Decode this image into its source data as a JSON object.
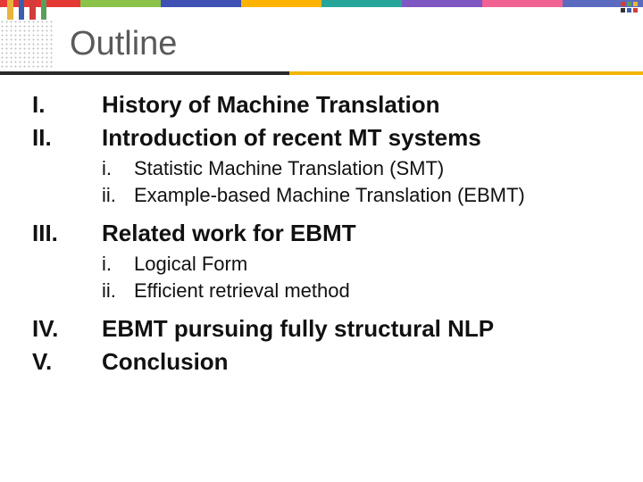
{
  "title": "Outline",
  "top_stripe_colors": [
    "#e53935",
    "#8bc34a",
    "#3f51b5",
    "#ffb300",
    "#26a69a",
    "#7e57c2",
    "#f06292",
    "#5c6bc0"
  ],
  "accent_bar_colors": [
    "#e8b43a",
    "#3a5fb0",
    "#d23c3c",
    "#58a05a"
  ],
  "title_underline_dark": "#2a2a2a",
  "title_underline_accent": "#f2b705",
  "logo_colors": {
    "a": "#d23c3c",
    "b": "#58a05a",
    "c": "#3a5fb0",
    "d": "#e8b43a",
    "e": "#333333"
  },
  "items": [
    {
      "num": "I.",
      "text": "History of Machine Translation"
    },
    {
      "num": "II.",
      "text": "Introduction of recent MT systems",
      "children": [
        {
          "num": "i.",
          "text": "Statistic Machine Translation (SMT)"
        },
        {
          "num": "ii.",
          "text": "Example-based Machine Translation (EBMT)"
        }
      ]
    },
    {
      "num": "III.",
      "text": "Related work for EBMT",
      "children": [
        {
          "num": "i.",
          "text": "Logical Form"
        },
        {
          "num": "ii.",
          "text": "Efficient retrieval method"
        }
      ]
    },
    {
      "num": "IV.",
      "text": "EBMT pursuing fully structural NLP"
    },
    {
      "num": "V.",
      "text": "Conclusion"
    }
  ]
}
